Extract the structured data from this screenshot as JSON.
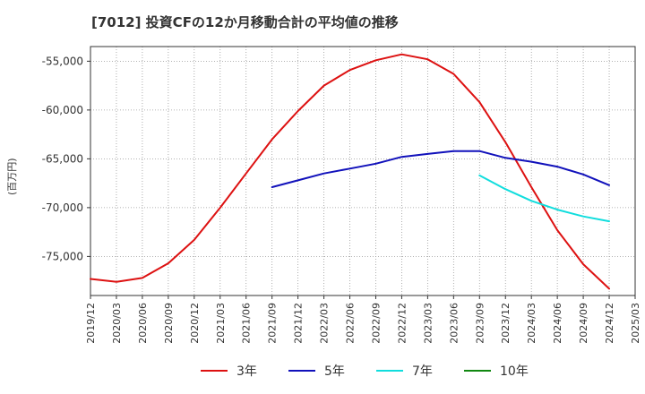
{
  "title": "[7012]  投資CFの12か月移動合計の平均値の推移",
  "chart_data": {
    "type": "line",
    "title": "[7012]  投資CFの12か月移動合計の平均値の推移",
    "ylabel": "(百万円)",
    "xlabel": "",
    "ylim": [
      -79000,
      -53500
    ],
    "yticks": [
      -55000,
      -60000,
      -65000,
      -70000,
      -75000
    ],
    "ytick_labels": [
      "-55,000",
      "-60,000",
      "-65,000",
      "-70,000",
      "-75,000"
    ],
    "xticks": [
      "2019/12",
      "2020/03",
      "2020/06",
      "2020/09",
      "2020/12",
      "2021/03",
      "2021/06",
      "2021/09",
      "2021/12",
      "2022/03",
      "2022/06",
      "2022/09",
      "2022/12",
      "2023/03",
      "2023/06",
      "2023/09",
      "2023/12",
      "2024/03",
      "2024/06",
      "2024/09",
      "2024/12",
      "2025/03"
    ],
    "grid": true,
    "legend_position": "bottom",
    "series": [
      {
        "name": "3年",
        "color": "#dd1111",
        "x": [
          "2019/12",
          "2020/03",
          "2020/06",
          "2020/09",
          "2020/12",
          "2021/03",
          "2021/06",
          "2021/09",
          "2021/12",
          "2022/03",
          "2022/06",
          "2022/09",
          "2022/12",
          "2023/03",
          "2023/06",
          "2023/09",
          "2023/12",
          "2024/03",
          "2024/06",
          "2024/09",
          "2024/12"
        ],
        "values": [
          -77300,
          -77600,
          -77200,
          -75700,
          -73300,
          -70000,
          -66500,
          -63000,
          -60100,
          -57500,
          -55900,
          -54900,
          -54300,
          -54800,
          -56300,
          -59200,
          -63300,
          -67900,
          -72300,
          -75800,
          -78300
        ]
      },
      {
        "name": "5年",
        "color": "#1111bb",
        "x": [
          "2021/09",
          "2021/12",
          "2022/03",
          "2022/06",
          "2022/09",
          "2022/12",
          "2023/03",
          "2023/06",
          "2023/09",
          "2023/12",
          "2024/03",
          "2024/06",
          "2024/09",
          "2024/12"
        ],
        "values": [
          -67900,
          -67200,
          -66500,
          -66000,
          -65500,
          -64800,
          -64500,
          -64200,
          -64200,
          -64900,
          -65300,
          -65800,
          -66600,
          -67700
        ]
      },
      {
        "name": "7年",
        "color": "#11dddd",
        "x": [
          "2023/09",
          "2023/12",
          "2024/03",
          "2024/06",
          "2024/09",
          "2024/12"
        ],
        "values": [
          -66700,
          -68100,
          -69300,
          -70200,
          -70900,
          -71400
        ]
      },
      {
        "name": "10年",
        "color": "#118811",
        "x": [],
        "values": []
      }
    ]
  }
}
